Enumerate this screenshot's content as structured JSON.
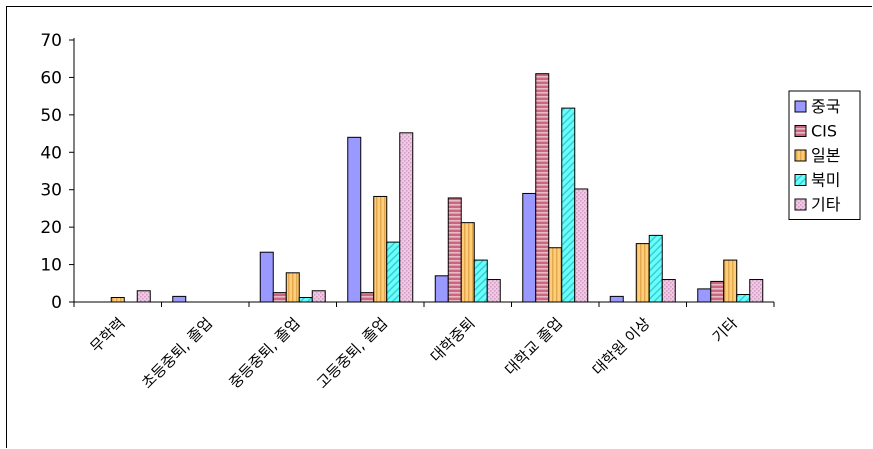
{
  "chart_data": {
    "type": "bar",
    "title": "",
    "xlabel": "",
    "ylabel": "",
    "ylim": [
      0,
      70
    ],
    "yticks": [
      0,
      10,
      20,
      30,
      40,
      50,
      60,
      70
    ],
    "grid": false,
    "legend_position": "right",
    "categories": [
      "무학력",
      "초등중퇴, 졸업",
      "중등중퇴, 졸업",
      "고등중퇴, 졸업",
      "대학중퇴",
      "대학교 졸업",
      "대학원 이상",
      "기타"
    ],
    "series": [
      {
        "name": "중국",
        "color": "#9999ff",
        "pattern": "solid",
        "values": [
          0,
          1.5,
          13.3,
          44,
          7,
          29,
          1.5,
          3.5
        ]
      },
      {
        "name": "CIS",
        "color": "#cc6680",
        "pattern": "hstripe",
        "values": [
          0,
          0,
          2.5,
          2.5,
          27.8,
          61,
          0,
          5.5
        ]
      },
      {
        "name": "일본",
        "color": "#ffcc77",
        "pattern": "vstripe",
        "values": [
          1.2,
          0,
          7.8,
          28.2,
          21.2,
          14.5,
          15.6,
          11.2
        ]
      },
      {
        "name": "북미",
        "color": "#66ffff",
        "pattern": "dstripe",
        "values": [
          0,
          0,
          1.2,
          16,
          11.2,
          51.8,
          17.8,
          2
        ]
      },
      {
        "name": "기타",
        "color": "#f2c8e6",
        "pattern": "dots",
        "values": [
          3,
          0,
          3,
          45.2,
          6,
          30.2,
          6,
          6
        ]
      }
    ]
  }
}
